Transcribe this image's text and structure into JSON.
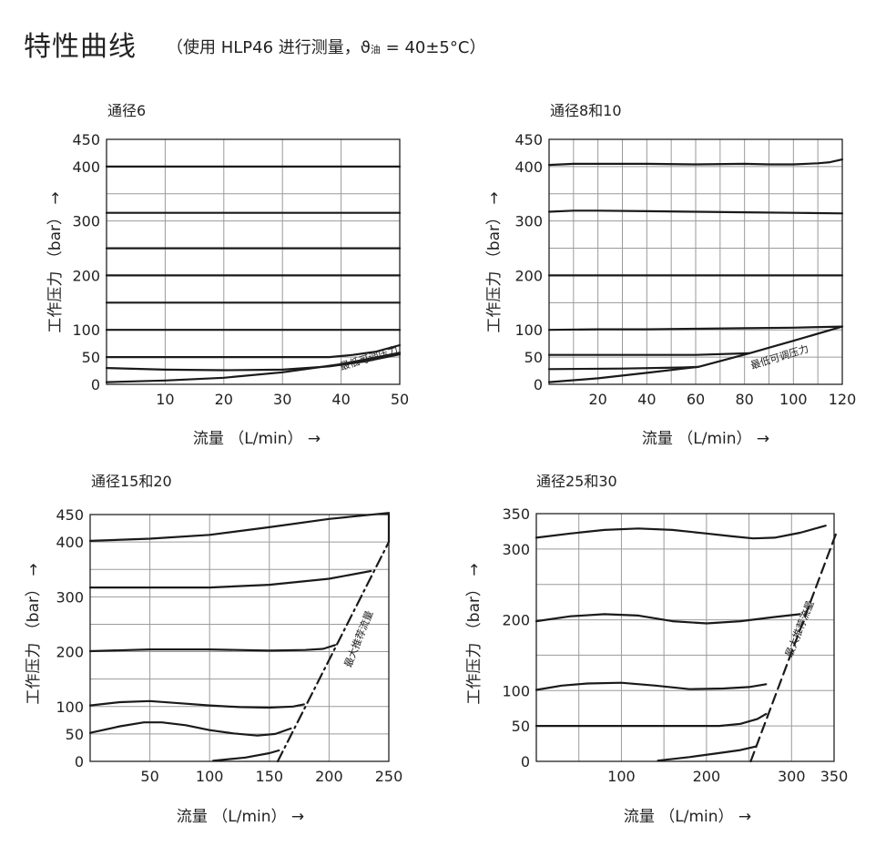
{
  "header": {
    "title": "特性曲线",
    "subtitle_pre": "（使用 HLP46 进行测量，ϑ",
    "subtitle_sub": "油",
    "subtitle_post": " = 40±5°C）"
  },
  "colors": {
    "grid": "#9a9a9a",
    "curve": "#1a1a1a",
    "frame": "#222222"
  },
  "chart_data": [
    {
      "type": "line",
      "title": "通径6",
      "xlabel": "流量  （L/min）   →",
      "ylabel": "工作压力  （bar）  →",
      "xlim": [
        0,
        50
      ],
      "ylim": [
        0,
        450
      ],
      "xticks": [
        10,
        20,
        30,
        40,
        50
      ],
      "xtick_labels": [
        "10",
        "20",
        "30",
        "40",
        "50"
      ],
      "yticks": [
        0,
        50,
        100,
        200,
        300,
        400,
        450
      ],
      "xgrid": [
        10,
        20,
        30,
        40
      ],
      "ygrid": [
        50,
        100,
        150,
        200,
        250,
        300,
        350,
        400
      ],
      "grid": true,
      "annotations": [
        {
          "text": "最低可调压力",
          "x": 40,
          "y": 26,
          "angle": -17
        }
      ],
      "series": [
        {
          "style": "solid",
          "points": [
            [
              0,
              400
            ],
            [
              50,
              400
            ]
          ]
        },
        {
          "style": "solid",
          "points": [
            [
              0,
              315
            ],
            [
              50,
              315
            ]
          ]
        },
        {
          "style": "solid",
          "points": [
            [
              0,
              250
            ],
            [
              50,
              250
            ]
          ]
        },
        {
          "style": "solid",
          "points": [
            [
              0,
              200
            ],
            [
              50,
              200
            ]
          ]
        },
        {
          "style": "solid",
          "points": [
            [
              0,
              150
            ],
            [
              50,
              150
            ]
          ]
        },
        {
          "style": "solid",
          "points": [
            [
              0,
              100
            ],
            [
              50,
              100
            ]
          ]
        },
        {
          "style": "solid",
          "points": [
            [
              0,
              50
            ],
            [
              38,
              50
            ],
            [
              42,
              54
            ],
            [
              46,
              60
            ],
            [
              50,
              72
            ]
          ]
        },
        {
          "style": "solid",
          "points": [
            [
              0,
              30
            ],
            [
              10,
              27
            ],
            [
              20,
              26
            ],
            [
              30,
              27
            ],
            [
              38,
              33
            ],
            [
              44,
              42
            ],
            [
              50,
              55
            ]
          ]
        },
        {
          "style": "solid",
          "points": [
            [
              0,
              4
            ],
            [
              10,
              7
            ],
            [
              20,
              12
            ],
            [
              30,
              22
            ],
            [
              40,
              37
            ],
            [
              50,
              58
            ]
          ]
        }
      ]
    },
    {
      "type": "line",
      "title": "通径8和10",
      "xlabel": "流量  （L/min）   →",
      "ylabel": "工作压力  （bar）  →",
      "xlim": [
        0,
        120
      ],
      "ylim": [
        0,
        450
      ],
      "xticks": [
        20,
        40,
        60,
        80,
        100,
        120
      ],
      "xtick_labels": [
        "20",
        "40",
        "60",
        "80",
        "100",
        "120"
      ],
      "yticks": [
        0,
        50,
        100,
        200,
        300,
        400,
        450
      ],
      "xgrid": [
        10,
        20,
        30,
        40,
        50,
        60,
        70,
        80,
        90,
        100,
        110
      ],
      "ygrid": [
        50,
        100,
        150,
        200,
        250,
        300,
        350,
        400
      ],
      "grid": true,
      "annotations": [
        {
          "text": "最低可调压力",
          "x": 83,
          "y": 28,
          "angle": -17
        }
      ],
      "series": [
        {
          "style": "solid",
          "points": [
            [
              0,
              403
            ],
            [
              10,
              405
            ],
            [
              20,
              405
            ],
            [
              40,
              405
            ],
            [
              60,
              404
            ],
            [
              80,
              405
            ],
            [
              90,
              404
            ],
            [
              100,
              404
            ],
            [
              110,
              406
            ],
            [
              115,
              408
            ],
            [
              120,
              413
            ]
          ]
        },
        {
          "style": "solid",
          "points": [
            [
              0,
              317
            ],
            [
              10,
              319
            ],
            [
              20,
              319
            ],
            [
              40,
              318
            ],
            [
              60,
              317
            ],
            [
              80,
              316
            ],
            [
              100,
              315
            ],
            [
              120,
              314
            ]
          ]
        },
        {
          "style": "solid",
          "points": [
            [
              0,
              200
            ],
            [
              120,
              200
            ]
          ]
        },
        {
          "style": "solid",
          "points": [
            [
              0,
              100
            ],
            [
              20,
              101
            ],
            [
              40,
              101
            ],
            [
              60,
              102
            ],
            [
              80,
              103
            ],
            [
              100,
              104
            ],
            [
              120,
              106
            ]
          ]
        },
        {
          "style": "solid",
          "points": [
            [
              0,
              54
            ],
            [
              60,
              54
            ],
            [
              82,
              57
            ]
          ]
        },
        {
          "style": "solid",
          "points": [
            [
              0,
              28
            ],
            [
              30,
              29
            ],
            [
              55,
              31
            ],
            [
              61,
              32
            ]
          ]
        },
        {
          "style": "solid",
          "points": [
            [
              0,
              4
            ],
            [
              20,
              11
            ],
            [
              40,
              21
            ],
            [
              55,
              29
            ],
            [
              61,
              32
            ],
            [
              82,
              57
            ],
            [
              100,
              80
            ],
            [
              120,
              106
            ]
          ]
        }
      ]
    },
    {
      "type": "line",
      "title": "通径15和20",
      "xlabel": "流量  （L/min）   →",
      "ylabel": "工作压力  （bar）  →",
      "xlim": [
        0,
        250
      ],
      "ylim": [
        0,
        450
      ],
      "xticks": [
        50,
        100,
        150,
        200,
        250
      ],
      "xtick_labels": [
        "50",
        "100",
        "150",
        "200",
        "250"
      ],
      "yticks": [
        0,
        50,
        100,
        200,
        300,
        400,
        450
      ],
      "xgrid": [
        50,
        100,
        150,
        200
      ],
      "ygrid": [
        50,
        100,
        150,
        200,
        250,
        300,
        350,
        400
      ],
      "grid": true,
      "annotations": [
        {
          "text": "最大推荐流量",
          "x": 218,
          "y": 170,
          "angle": -68
        }
      ],
      "series": [
        {
          "style": "solid",
          "points": [
            [
              0,
              402
            ],
            [
              50,
              406
            ],
            [
              100,
              413
            ],
            [
              150,
              427
            ],
            [
              200,
              442
            ],
            [
              250,
              453
            ],
            [
              250,
              400
            ]
          ]
        },
        {
          "style": "solid",
          "points": [
            [
              0,
              317
            ],
            [
              50,
              317
            ],
            [
              100,
              317
            ],
            [
              150,
              322
            ],
            [
              200,
              333
            ],
            [
              235,
              347
            ]
          ]
        },
        {
          "style": "solid",
          "points": [
            [
              0,
              201
            ],
            [
              50,
              204
            ],
            [
              100,
              204
            ],
            [
              150,
              202
            ],
            [
              180,
              203
            ],
            [
              195,
              205
            ],
            [
              205,
              212
            ]
          ]
        },
        {
          "style": "solid",
          "points": [
            [
              0,
              102
            ],
            [
              25,
              108
            ],
            [
              50,
              110
            ],
            [
              75,
              106
            ],
            [
              100,
              102
            ],
            [
              125,
              99
            ],
            [
              150,
              98
            ],
            [
              170,
              100
            ],
            [
              179,
              104
            ]
          ]
        },
        {
          "style": "solid",
          "points": [
            [
              0,
              52
            ],
            [
              25,
              64
            ],
            [
              45,
              71
            ],
            [
              60,
              71
            ],
            [
              80,
              66
            ],
            [
              100,
              57
            ],
            [
              120,
              51
            ],
            [
              140,
              47
            ],
            [
              155,
              50
            ],
            [
              168,
              60
            ]
          ]
        },
        {
          "style": "solid",
          "points": [
            [
              103,
              1
            ],
            [
              130,
              7
            ],
            [
              150,
              15
            ],
            [
              158,
              20
            ]
          ]
        },
        {
          "style": "dashdot",
          "points": [
            [
              157,
              0
            ],
            [
              250,
              400
            ]
          ]
        }
      ]
    },
    {
      "type": "line",
      "title": "通径25和30",
      "xlabel": "流量  （L/min）   →",
      "ylabel": "工作压力  （bar）  →",
      "xlim": [
        0,
        350
      ],
      "ylim": [
        0,
        350
      ],
      "xticks": [
        100,
        200,
        300,
        350
      ],
      "xtick_labels": [
        "100",
        "200",
        "300",
        "350"
      ],
      "yticks": [
        0,
        50,
        100,
        200,
        300,
        350
      ],
      "xgrid": [
        50,
        100,
        150,
        200,
        250,
        300
      ],
      "ygrid": [
        50,
        100,
        150,
        200,
        250,
        300
      ],
      "grid": true,
      "annotations": [
        {
          "text": "最大推荐流量",
          "x": 300,
          "y": 146,
          "angle": -68
        }
      ],
      "series": [
        {
          "style": "solid",
          "points": [
            [
              0,
              316
            ],
            [
              40,
              322
            ],
            [
              80,
              327
            ],
            [
              120,
              329
            ],
            [
              160,
              327
            ],
            [
              200,
              322
            ],
            [
              230,
              318
            ],
            [
              255,
              315
            ],
            [
              280,
              316
            ],
            [
              310,
              323
            ],
            [
              340,
              333
            ]
          ]
        },
        {
          "style": "solid",
          "points": [
            [
              0,
              198
            ],
            [
              40,
              205
            ],
            [
              80,
              208
            ],
            [
              120,
              206
            ],
            [
              160,
              198
            ],
            [
              200,
              195
            ],
            [
              240,
              198
            ],
            [
              280,
              204
            ],
            [
              310,
              208
            ]
          ]
        },
        {
          "style": "solid",
          "points": [
            [
              0,
              101
            ],
            [
              30,
              107
            ],
            [
              60,
              110
            ],
            [
              100,
              111
            ],
            [
              140,
              107
            ],
            [
              180,
              102
            ],
            [
              220,
              103
            ],
            [
              250,
              105
            ],
            [
              270,
              109
            ]
          ]
        },
        {
          "style": "solid",
          "points": [
            [
              0,
              50
            ],
            [
              215,
              50
            ],
            [
              240,
              53
            ],
            [
              260,
              60
            ],
            [
              270,
              67
            ]
          ]
        },
        {
          "style": "solid",
          "points": [
            [
              143,
              1
            ],
            [
              180,
              6
            ],
            [
              210,
              11
            ],
            [
              240,
              16
            ],
            [
              258,
              21
            ]
          ]
        },
        {
          "style": "dashed",
          "points": [
            [
              252,
              0
            ],
            [
              353,
              324
            ]
          ]
        }
      ]
    }
  ]
}
